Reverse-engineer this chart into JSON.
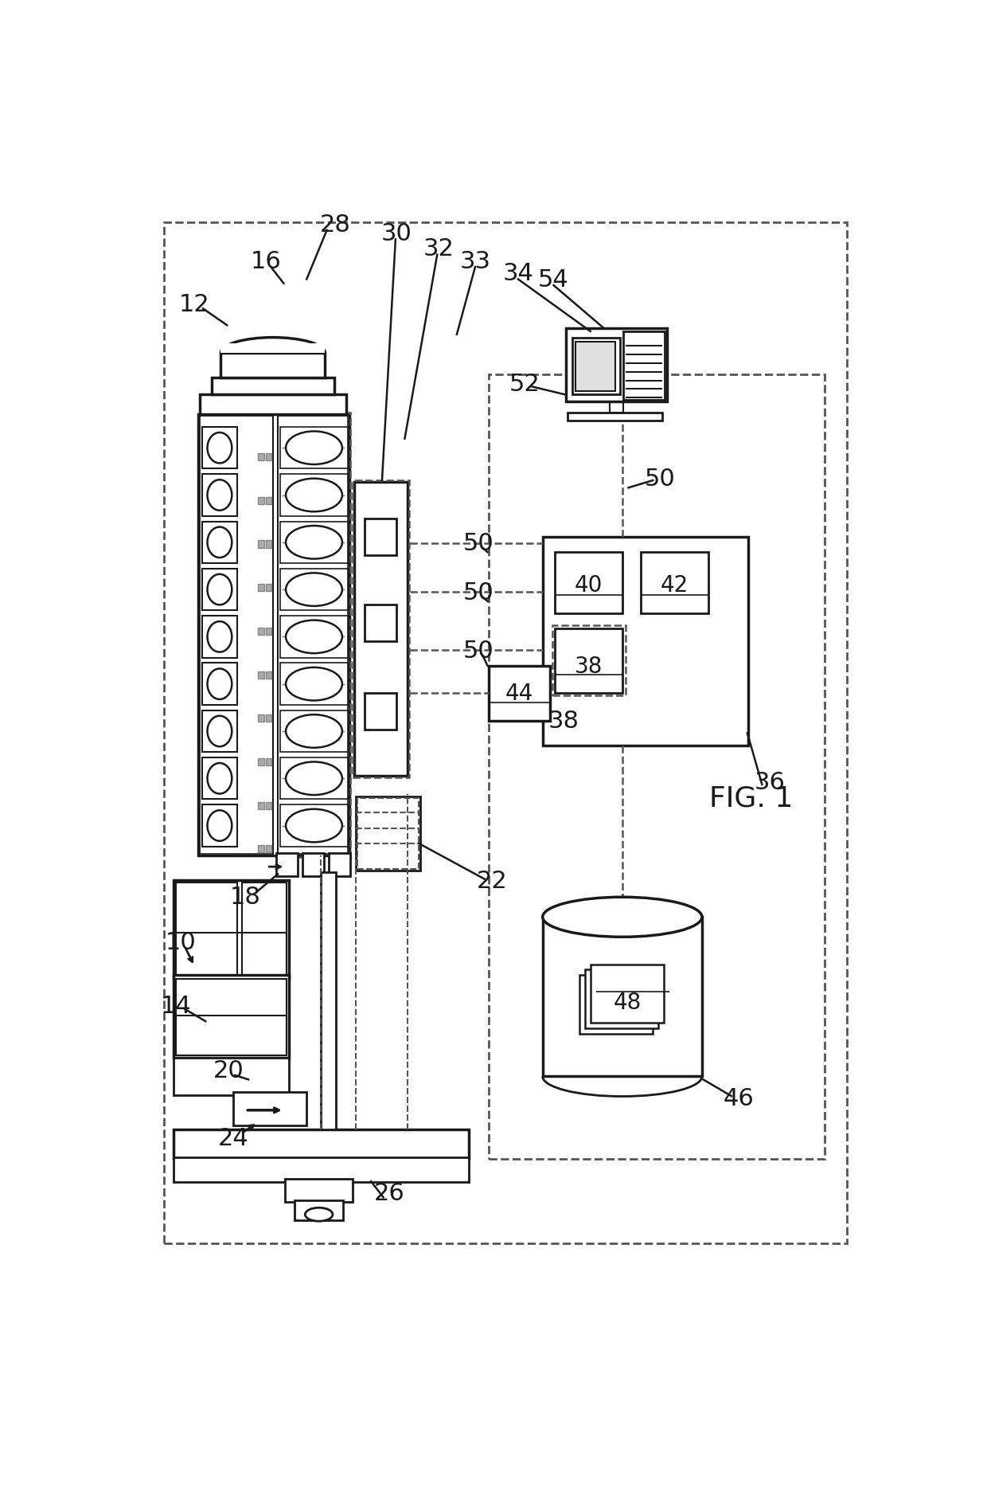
{
  "bg": "#ffffff",
  "lc": "#1a1a1a",
  "dc": "#555555",
  "fig_title": "FIG. 1"
}
